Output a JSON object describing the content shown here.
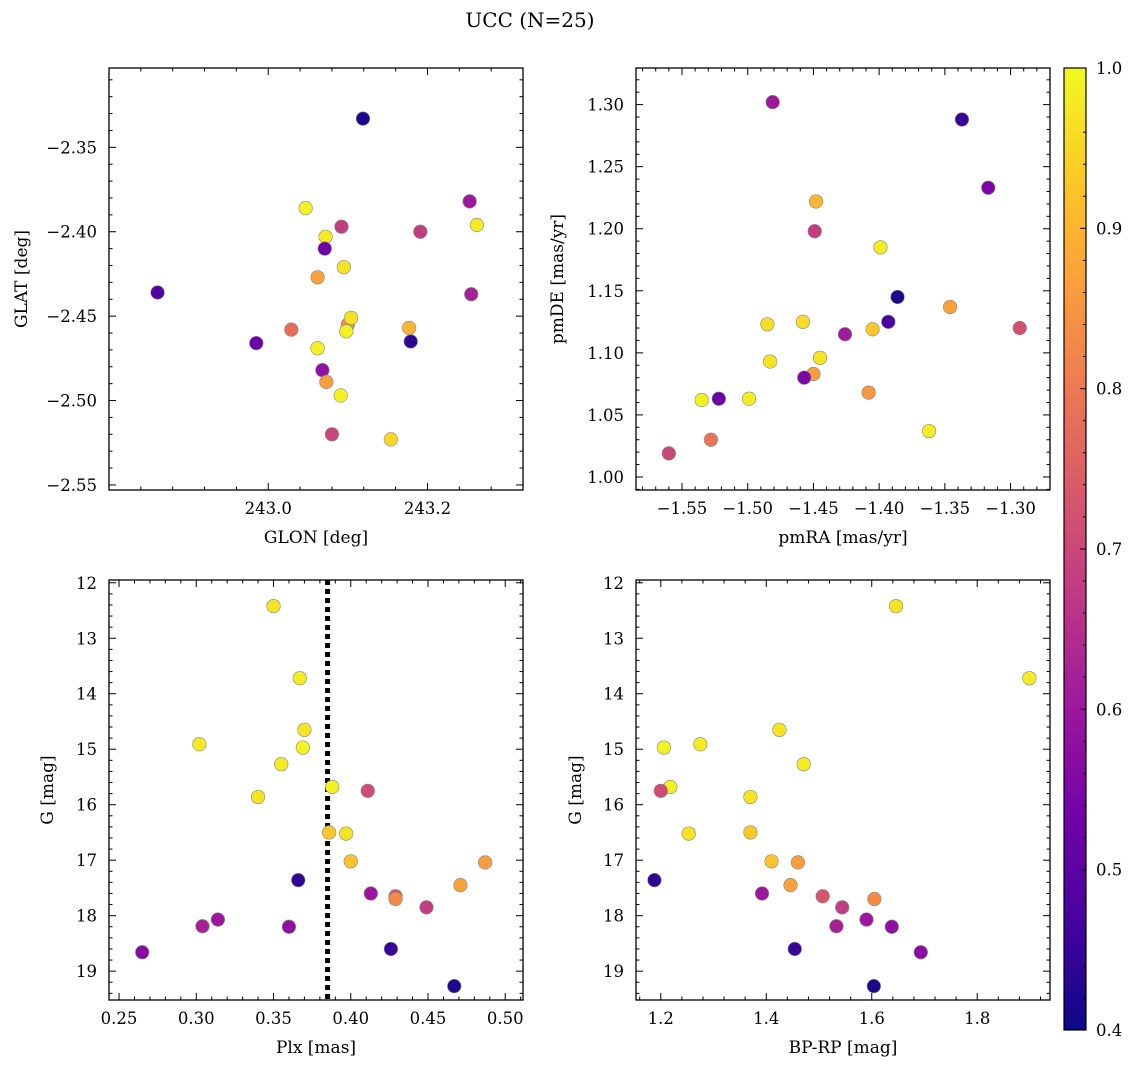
{
  "figure": {
    "title": "UCC (N=25)"
  },
  "colors": {
    "colormap": [
      "#0d0887",
      "#46039f",
      "#7201a8",
      "#9c179e",
      "#bd3786",
      "#d8576b",
      "#ed7953",
      "#fb9f3a",
      "#fdca26",
      "#f0f921"
    ],
    "marker_edge": "#8a8a8a",
    "reference_line": "#000000"
  },
  "colorbar": {
    "min": 0.4,
    "max": 1.0,
    "ticks": [
      "0.4",
      "0.5",
      "0.6",
      "0.7",
      "0.8",
      "0.9",
      "1.0"
    ]
  },
  "chart_data": [
    {
      "type": "scatter",
      "id": "glon_glat",
      "xlabel": "GLON [deg]",
      "ylabel": "GLAT [deg]",
      "xlim": [
        242.8,
        243.32
      ],
      "ylim": [
        -2.553,
        -2.303
      ],
      "xticks": [
        243.0,
        243.2
      ],
      "xticklabels": [
        "243.0",
        "243.2"
      ],
      "yticks": [
        -2.55,
        -2.5,
        -2.45,
        -2.4,
        -2.35
      ],
      "yticklabels": [
        "−2.55",
        "−2.50",
        "−2.45",
        "−2.40",
        "−2.35"
      ],
      "yinvert": false,
      "points": [
        {
          "x": 243.119,
          "y": -2.333,
          "c": 0.42
        },
        {
          "x": 242.861,
          "y": -2.436,
          "c": 0.48
        },
        {
          "x": 242.985,
          "y": -2.466,
          "c": 0.52
        },
        {
          "x": 243.047,
          "y": -2.386,
          "c": 0.99
        },
        {
          "x": 243.092,
          "y": -2.397,
          "c": 0.68
        },
        {
          "x": 243.072,
          "y": -2.403,
          "c": 0.98
        },
        {
          "x": 243.071,
          "y": -2.41,
          "c": 0.53
        },
        {
          "x": 243.095,
          "y": -2.421,
          "c": 0.97
        },
        {
          "x": 243.062,
          "y": -2.427,
          "c": 0.87
        },
        {
          "x": 243.029,
          "y": -2.458,
          "c": 0.78
        },
        {
          "x": 243.1,
          "y": -2.455,
          "c": 0.83
        },
        {
          "x": 243.104,
          "y": -2.451,
          "c": 0.97
        },
        {
          "x": 243.098,
          "y": -2.459,
          "c": 0.99
        },
        {
          "x": 243.062,
          "y": -2.469,
          "c": 0.99
        },
        {
          "x": 243.177,
          "y": -2.457,
          "c": 0.9
        },
        {
          "x": 243.179,
          "y": -2.465,
          "c": 0.44
        },
        {
          "x": 243.191,
          "y": -2.4,
          "c": 0.68
        },
        {
          "x": 243.253,
          "y": -2.382,
          "c": 0.6
        },
        {
          "x": 243.262,
          "y": -2.396,
          "c": 0.98
        },
        {
          "x": 243.255,
          "y": -2.437,
          "c": 0.62
        },
        {
          "x": 243.068,
          "y": -2.482,
          "c": 0.58
        },
        {
          "x": 243.073,
          "y": -2.489,
          "c": 0.86
        },
        {
          "x": 243.091,
          "y": -2.497,
          "c": 0.99
        },
        {
          "x": 243.08,
          "y": -2.52,
          "c": 0.7
        },
        {
          "x": 243.154,
          "y": -2.523,
          "c": 0.95
        }
      ]
    },
    {
      "type": "scatter",
      "id": "pmra_pmde",
      "xlabel": "pmRA [mas/yr]",
      "ylabel": "pmDE [mas/yr]",
      "xlim": [
        -1.585,
        -1.27
      ],
      "ylim": [
        0.9895,
        1.3295
      ],
      "xticks": [
        -1.55,
        -1.5,
        -1.45,
        -1.4,
        -1.35,
        -1.3
      ],
      "xticklabels": [
        "−1.55",
        "−1.50",
        "−1.45",
        "−1.40",
        "−1.35",
        "−1.30"
      ],
      "yticks": [
        1.0,
        1.05,
        1.1,
        1.15,
        1.2,
        1.25,
        1.3
      ],
      "yticklabels": [
        "1.00",
        "1.05",
        "1.10",
        "1.15",
        "1.20",
        "1.25",
        "1.30"
      ],
      "yinvert": false,
      "points": [
        {
          "x": -1.481,
          "y": 1.302,
          "c": 0.6
        },
        {
          "x": -1.337,
          "y": 1.288,
          "c": 0.45
        },
        {
          "x": -1.317,
          "y": 1.233,
          "c": 0.55
        },
        {
          "x": -1.448,
          "y": 1.222,
          "c": 0.9
        },
        {
          "x": -1.449,
          "y": 1.198,
          "c": 0.68
        },
        {
          "x": -1.399,
          "y": 1.185,
          "c": 0.98
        },
        {
          "x": -1.386,
          "y": 1.145,
          "c": 0.42
        },
        {
          "x": -1.346,
          "y": 1.137,
          "c": 0.87
        },
        {
          "x": -1.293,
          "y": 1.12,
          "c": 0.72
        },
        {
          "x": -1.485,
          "y": 1.123,
          "c": 0.96
        },
        {
          "x": -1.458,
          "y": 1.125,
          "c": 0.96
        },
        {
          "x": -1.393,
          "y": 1.125,
          "c": 0.47
        },
        {
          "x": -1.426,
          "y": 1.115,
          "c": 0.61
        },
        {
          "x": -1.405,
          "y": 1.119,
          "c": 0.93
        },
        {
          "x": -1.445,
          "y": 1.096,
          "c": 0.97
        },
        {
          "x": -1.483,
          "y": 1.093,
          "c": 0.97
        },
        {
          "x": -1.45,
          "y": 1.083,
          "c": 0.86
        },
        {
          "x": -1.457,
          "y": 1.08,
          "c": 0.55
        },
        {
          "x": -1.408,
          "y": 1.068,
          "c": 0.85
        },
        {
          "x": -1.535,
          "y": 1.062,
          "c": 0.99
        },
        {
          "x": -1.522,
          "y": 1.063,
          "c": 0.52
        },
        {
          "x": -1.499,
          "y": 1.063,
          "c": 0.98
        },
        {
          "x": -1.362,
          "y": 1.037,
          "c": 0.98
        },
        {
          "x": -1.528,
          "y": 1.03,
          "c": 0.79
        },
        {
          "x": -1.56,
          "y": 1.019,
          "c": 0.7
        }
      ]
    },
    {
      "type": "scatter",
      "id": "plx_g",
      "xlabel": "Plx [mas]",
      "ylabel": "G [mag]",
      "xlim": [
        0.2435,
        0.5115
      ],
      "ylim": [
        11.95,
        19.52
      ],
      "xticks": [
        0.25,
        0.3,
        0.35,
        0.4,
        0.45,
        0.5
      ],
      "xticklabels": [
        "0.25",
        "0.30",
        "0.35",
        "0.40",
        "0.45",
        "0.50"
      ],
      "yticks": [
        12,
        13,
        14,
        15,
        16,
        17,
        18,
        19
      ],
      "yticklabels": [
        "12",
        "13",
        "14",
        "15",
        "16",
        "17",
        "18",
        "19"
      ],
      "yinvert": true,
      "vline": 0.385,
      "points": [
        {
          "x": 0.35,
          "y": 12.42,
          "c": 0.97
        },
        {
          "x": 0.367,
          "y": 13.72,
          "c": 0.98
        },
        {
          "x": 0.37,
          "y": 14.65,
          "c": 0.97
        },
        {
          "x": 0.302,
          "y": 14.91,
          "c": 0.98
        },
        {
          "x": 0.369,
          "y": 14.97,
          "c": 0.99
        },
        {
          "x": 0.355,
          "y": 15.27,
          "c": 0.98
        },
        {
          "x": 0.388,
          "y": 15.68,
          "c": 0.99
        },
        {
          "x": 0.411,
          "y": 15.75,
          "c": 0.71
        },
        {
          "x": 0.34,
          "y": 15.86,
          "c": 0.97
        },
        {
          "x": 0.386,
          "y": 16.5,
          "c": 0.93
        },
        {
          "x": 0.397,
          "y": 16.52,
          "c": 0.97
        },
        {
          "x": 0.4,
          "y": 17.02,
          "c": 0.92
        },
        {
          "x": 0.487,
          "y": 17.04,
          "c": 0.86
        },
        {
          "x": 0.366,
          "y": 17.36,
          "c": 0.44
        },
        {
          "x": 0.471,
          "y": 17.45,
          "c": 0.87
        },
        {
          "x": 0.413,
          "y": 17.6,
          "c": 0.6
        },
        {
          "x": 0.429,
          "y": 17.65,
          "c": 0.73
        },
        {
          "x": 0.429,
          "y": 17.7,
          "c": 0.83
        },
        {
          "x": 0.449,
          "y": 17.85,
          "c": 0.68
        },
        {
          "x": 0.314,
          "y": 18.07,
          "c": 0.6
        },
        {
          "x": 0.304,
          "y": 18.19,
          "c": 0.62
        },
        {
          "x": 0.36,
          "y": 18.2,
          "c": 0.58
        },
        {
          "x": 0.426,
          "y": 18.6,
          "c": 0.45
        },
        {
          "x": 0.265,
          "y": 18.66,
          "c": 0.57
        },
        {
          "x": 0.467,
          "y": 19.27,
          "c": 0.42
        }
      ]
    },
    {
      "type": "scatter",
      "id": "bprp_g",
      "xlabel": "BP-RP [mag]",
      "ylabel": "G [mag]",
      "xlim": [
        1.153,
        1.938
      ],
      "ylim": [
        11.95,
        19.52
      ],
      "xticks": [
        1.2,
        1.4,
        1.6,
        1.8
      ],
      "xticklabels": [
        "1.2",
        "1.4",
        "1.6",
        "1.8"
      ],
      "yticks": [
        12,
        13,
        14,
        15,
        16,
        17,
        18,
        19
      ],
      "yticklabels": [
        "12",
        "13",
        "14",
        "15",
        "16",
        "17",
        "18",
        "19"
      ],
      "yinvert": true,
      "points": [
        {
          "x": 1.646,
          "y": 12.42,
          "c": 0.97
        },
        {
          "x": 1.899,
          "y": 13.72,
          "c": 0.98
        },
        {
          "x": 1.425,
          "y": 14.65,
          "c": 0.97
        },
        {
          "x": 1.275,
          "y": 14.91,
          "c": 0.98
        },
        {
          "x": 1.206,
          "y": 14.97,
          "c": 0.99
        },
        {
          "x": 1.471,
          "y": 15.27,
          "c": 0.98
        },
        {
          "x": 1.218,
          "y": 15.68,
          "c": 0.99
        },
        {
          "x": 1.2,
          "y": 15.75,
          "c": 0.71
        },
        {
          "x": 1.37,
          "y": 15.86,
          "c": 0.97
        },
        {
          "x": 1.37,
          "y": 16.5,
          "c": 0.93
        },
        {
          "x": 1.253,
          "y": 16.52,
          "c": 0.97
        },
        {
          "x": 1.41,
          "y": 17.02,
          "c": 0.92
        },
        {
          "x": 1.46,
          "y": 17.04,
          "c": 0.86
        },
        {
          "x": 1.188,
          "y": 17.36,
          "c": 0.44
        },
        {
          "x": 1.446,
          "y": 17.45,
          "c": 0.87
        },
        {
          "x": 1.392,
          "y": 17.6,
          "c": 0.6
        },
        {
          "x": 1.507,
          "y": 17.65,
          "c": 0.73
        },
        {
          "x": 1.605,
          "y": 17.7,
          "c": 0.83
        },
        {
          "x": 1.544,
          "y": 17.85,
          "c": 0.68
        },
        {
          "x": 1.59,
          "y": 18.07,
          "c": 0.6
        },
        {
          "x": 1.533,
          "y": 18.19,
          "c": 0.62
        },
        {
          "x": 1.638,
          "y": 18.2,
          "c": 0.58
        },
        {
          "x": 1.454,
          "y": 18.6,
          "c": 0.45
        },
        {
          "x": 1.693,
          "y": 18.66,
          "c": 0.57
        },
        {
          "x": 1.604,
          "y": 19.27,
          "c": 0.42
        }
      ]
    }
  ]
}
